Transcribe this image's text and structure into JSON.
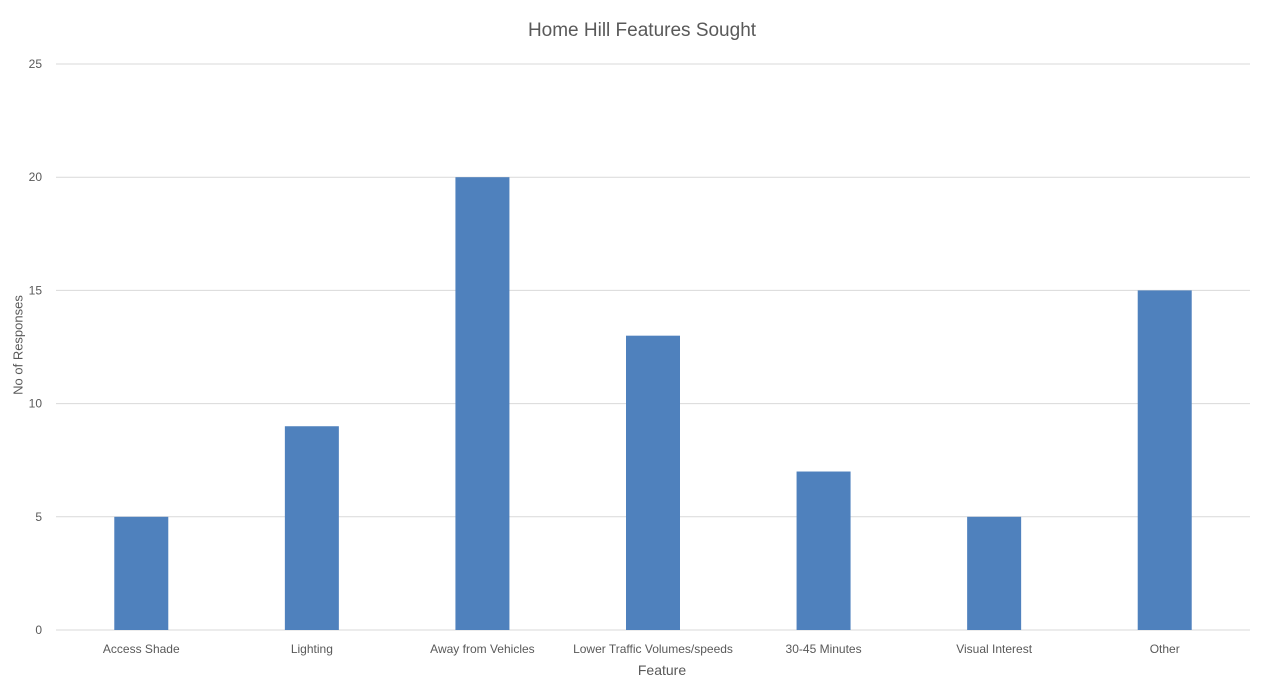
{
  "chart_data": {
    "type": "bar",
    "title": "Home Hill Features Sought",
    "xlabel": "Feature",
    "ylabel": "No of Responses",
    "categories": [
      "Access Shade",
      "Lighting",
      "Away from Vehicles",
      "Lower Traffic Volumes/speeds",
      "30-45 Minutes",
      "Visual Interest",
      "Other"
    ],
    "values": [
      5,
      9,
      20,
      13,
      7,
      5,
      15
    ],
    "ylim": [
      0,
      25
    ],
    "yticks": [
      0,
      5,
      10,
      15,
      20,
      25
    ],
    "grid": true,
    "legend": "none",
    "colors": {
      "bar": "#4f81bd",
      "grid": "#d9d9d9",
      "text": "#595959"
    }
  }
}
